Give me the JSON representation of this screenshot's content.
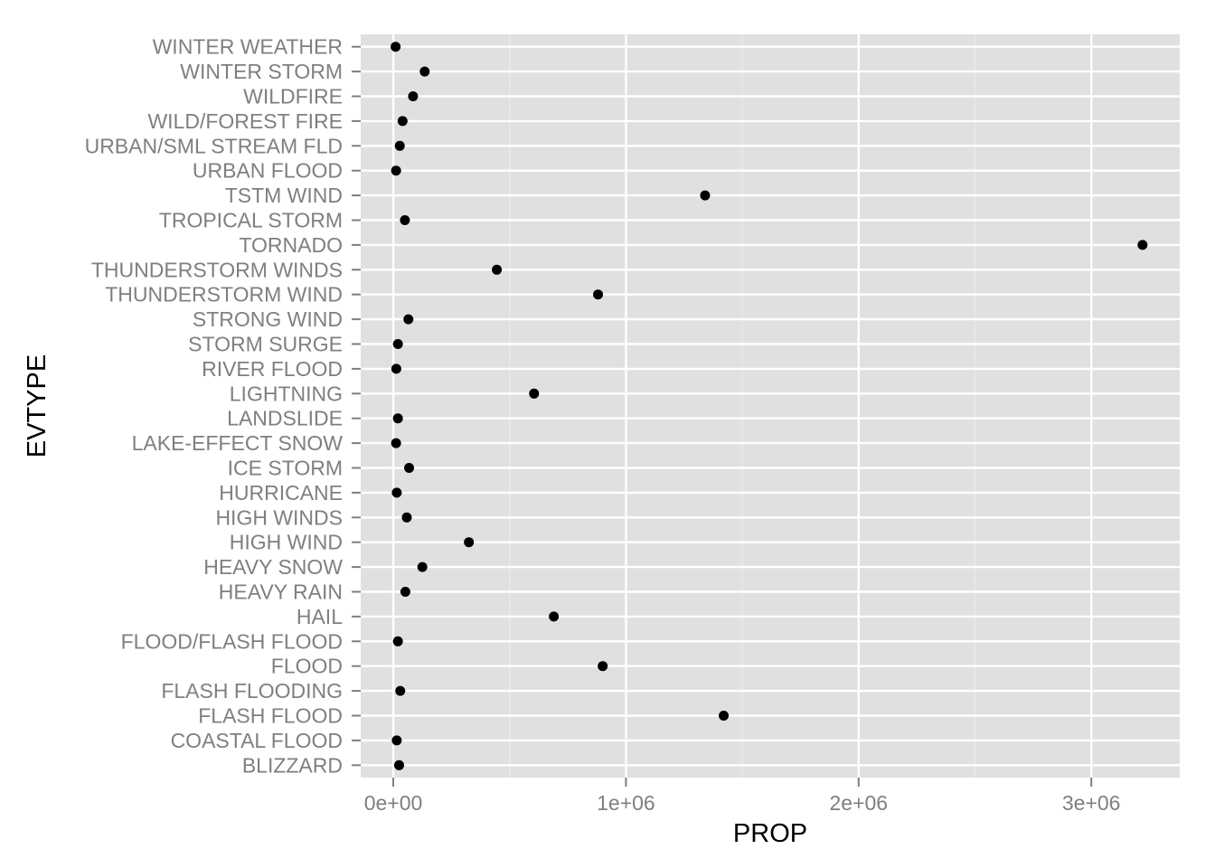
{
  "chart_data": {
    "type": "scatter",
    "title": "",
    "xlabel": "PROP",
    "ylabel": "EVTYPE",
    "xlim": [
      -140000,
      3380000
    ],
    "x_ticks": [
      0,
      1000000,
      2000000,
      3000000
    ],
    "x_tick_labels": [
      "0e+00",
      "1e+06",
      "2e+06",
      "3e+06"
    ],
    "grid": true,
    "legend": "none",
    "colors": {
      "panel": "#e0e0e0",
      "grid_major": "#ffffff",
      "grid_minor": "#ececec",
      "point": "#000000",
      "tick_text": "#7f7f7f",
      "axis_text": "#000000"
    },
    "categories": [
      "BLIZZARD",
      "COASTAL FLOOD",
      "FLASH FLOOD",
      "FLASH FLOODING",
      "FLOOD",
      "FLOOD/FLASH FLOOD",
      "HAIL",
      "HEAVY RAIN",
      "HEAVY SNOW",
      "HIGH WIND",
      "HIGH WINDS",
      "HURRICANE",
      "ICE STORM",
      "LAKE-EFFECT SNOW",
      "LANDSLIDE",
      "LIGHTNING",
      "RIVER FLOOD",
      "STORM SURGE",
      "STRONG WIND",
      "THUNDERSTORM WIND",
      "THUNDERSTORM WINDS",
      "TORNADO",
      "TROPICAL STORM",
      "TSTM WIND",
      "URBAN FLOOD",
      "URBAN/SML STREAM FLD",
      "WILD/FOREST FIRE",
      "WILDFIRE",
      "WINTER STORM",
      "WINTER WEATHER"
    ],
    "values": [
      25000,
      15000,
      1420000,
      30000,
      900000,
      20000,
      690000,
      52000,
      125000,
      325000,
      58000,
      15000,
      68000,
      12000,
      20000,
      605000,
      13000,
      20000,
      65000,
      880000,
      445000,
      3220000,
      50000,
      1340000,
      12000,
      28000,
      40000,
      85000,
      135000,
      10000
    ]
  }
}
